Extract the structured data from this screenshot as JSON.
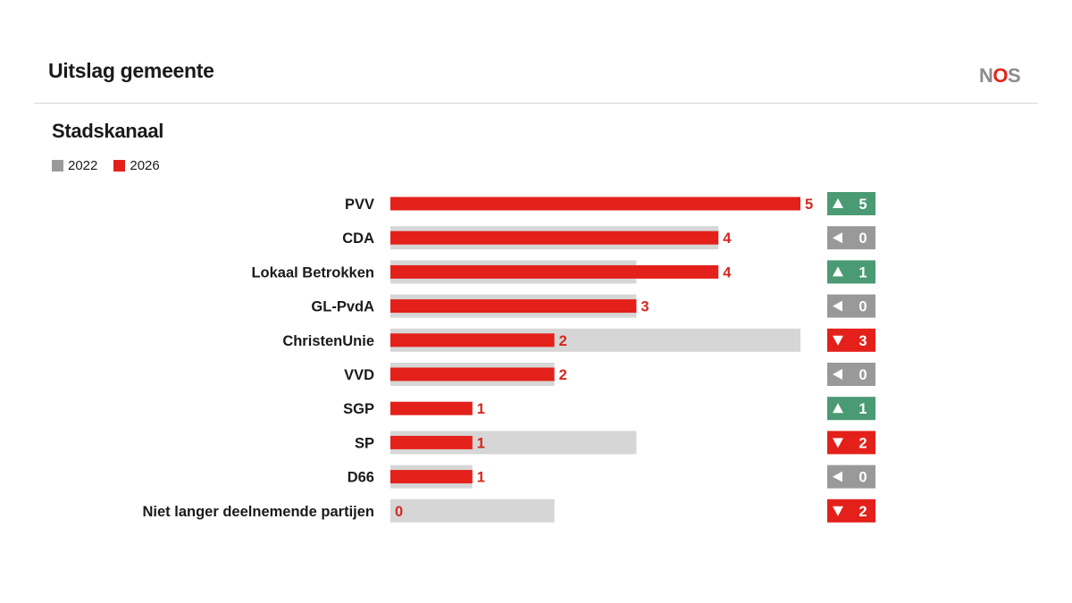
{
  "header": {
    "title": "Uitslag gemeente"
  },
  "logo": {
    "letters": [
      "N",
      "O",
      "S"
    ],
    "colors": [
      "#8c8c8c",
      "#e4251b",
      "#8c8c8c"
    ]
  },
  "colors": {
    "bar_2026": "#e3211a",
    "bar_2022": "#d6d6d6",
    "swatch_2022": "#9b9b9b",
    "up": "#4a9a73",
    "down": "#e3211a",
    "same": "#999999",
    "value_text": "#d7261e"
  },
  "chart_data": {
    "type": "bar",
    "orientation": "horizontal",
    "title": "Stadskanaal",
    "categories": [
      "PVV",
      "CDA",
      "Lokaal Betrokken",
      "GL-PvdA",
      "ChristenUnie",
      "VVD",
      "SGP",
      "SP",
      "D66",
      "Niet langer deelnemende partijen"
    ],
    "series": [
      {
        "name": "2022",
        "values": [
          0,
          4,
          3,
          3,
          5,
          2,
          0,
          3,
          1,
          2
        ]
      },
      {
        "name": "2026",
        "values": [
          5,
          4,
          4,
          3,
          2,
          2,
          1,
          1,
          1,
          0
        ]
      }
    ],
    "change": [
      {
        "direction": "up",
        "label": "5"
      },
      {
        "direction": "same",
        "label": "0"
      },
      {
        "direction": "up",
        "label": "1"
      },
      {
        "direction": "same",
        "label": "0"
      },
      {
        "direction": "down",
        "label": "3"
      },
      {
        "direction": "same",
        "label": "0"
      },
      {
        "direction": "up",
        "label": "1"
      },
      {
        "direction": "down",
        "label": "2"
      },
      {
        "direction": "same",
        "label": "0"
      },
      {
        "direction": "down",
        "label": "2"
      }
    ],
    "xlim": [
      0,
      5
    ],
    "legend": "top-left",
    "grid": false
  }
}
